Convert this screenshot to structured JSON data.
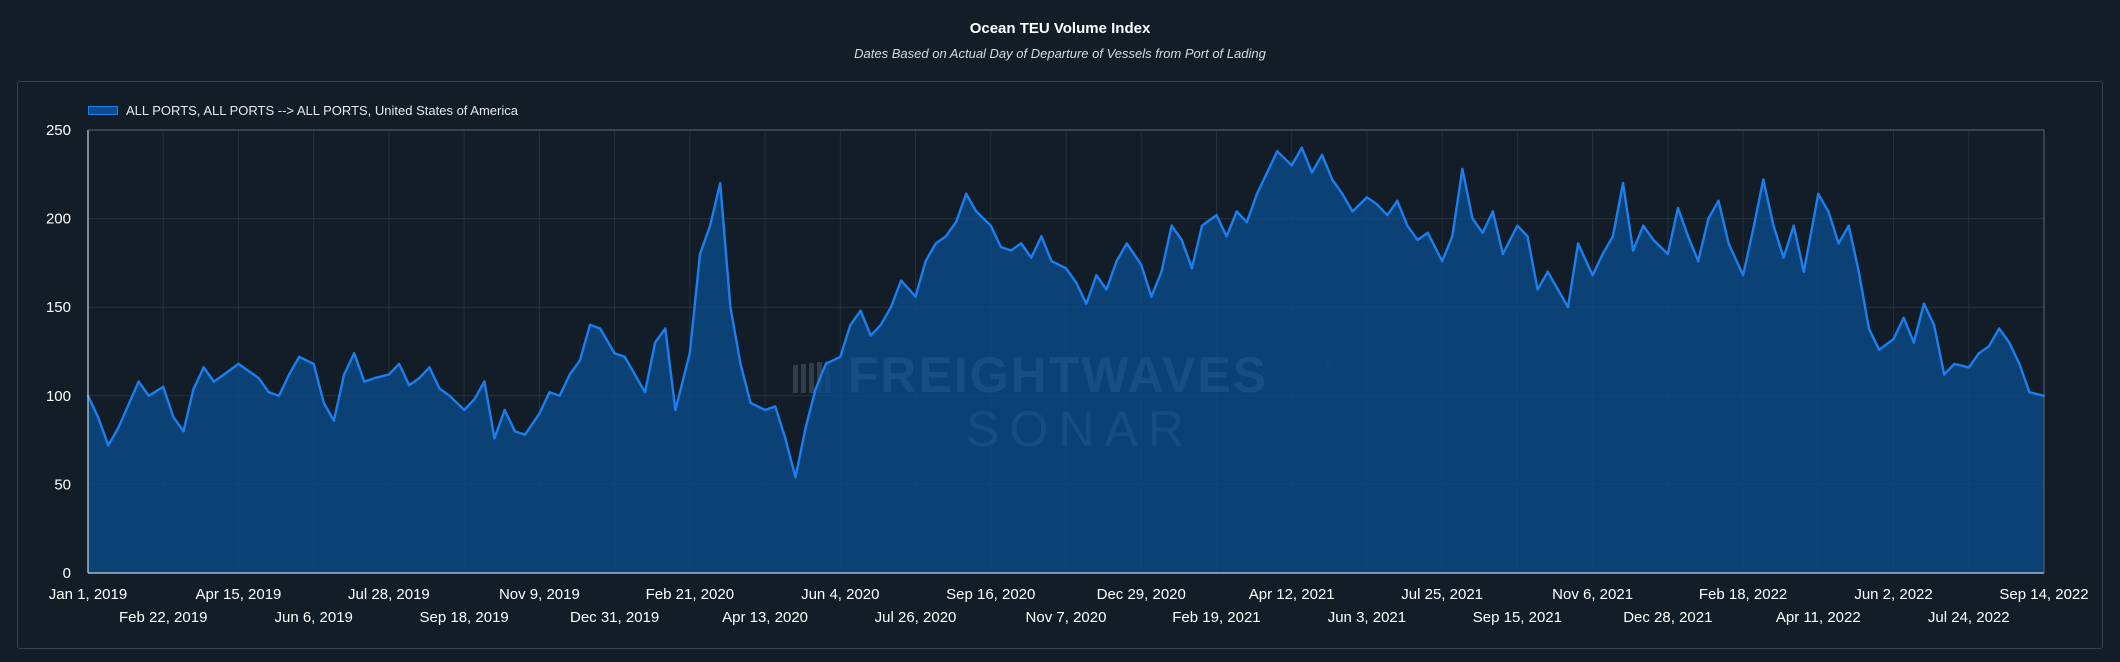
{
  "chart_data": {
    "type": "area",
    "title": "Ocean TEU Volume Index",
    "subtitle": "Dates Based on Actual Day of Departure of Vessels from Port of Lading",
    "xlabel": "",
    "ylabel": "",
    "ylim": [
      0,
      250
    ],
    "yticks": [
      "0",
      "50",
      "100",
      "150",
      "200",
      "250"
    ],
    "grid": true,
    "legend_position": "top-left",
    "x_tick_labels": [
      "Jan 1, 2019",
      "Feb 22, 2019",
      "Apr 15, 2019",
      "Jun 6, 2019",
      "Jul 28, 2019",
      "Sep 18, 2019",
      "Nov 9, 2019",
      "Dec 31, 2019",
      "Feb 21, 2020",
      "Apr 13, 2020",
      "Jun 4, 2020",
      "Jul 26, 2020",
      "Sep 16, 2020",
      "Nov 7, 2020",
      "Dec 29, 2020",
      "Feb 19, 2021",
      "Apr 12, 2021",
      "Jun 3, 2021",
      "Jul 25, 2021",
      "Sep 15, 2021",
      "Nov 6, 2021",
      "Dec 28, 2021",
      "Feb 18, 2022",
      "Apr 11, 2022",
      "Jun 2, 2022",
      "Jul 24, 2022",
      "Sep 14, 2022"
    ],
    "series": [
      {
        "name": "ALL PORTS, ALL PORTS --> ALL PORTS, United States of America",
        "color": "#1a7ff0",
        "fill": "#0a4c8c",
        "points": [
          [
            "Jan 1, 2019",
            100
          ],
          [
            "Jan 8, 2019",
            88
          ],
          [
            "Jan 15, 2019",
            72
          ],
          [
            "Jan 22, 2019",
            82
          ],
          [
            "Jan 29, 2019",
            95
          ],
          [
            "Feb 5, 2019",
            108
          ],
          [
            "Feb 12, 2019",
            100
          ],
          [
            "Feb 22, 2019",
            105
          ],
          [
            "Mar 1, 2019",
            88
          ],
          [
            "Mar 8, 2019",
            80
          ],
          [
            "Mar 15, 2019",
            104
          ],
          [
            "Mar 22, 2019",
            116
          ],
          [
            "Mar 29, 2019",
            108
          ],
          [
            "Apr 5, 2019",
            112
          ],
          [
            "Apr 15, 2019",
            118
          ],
          [
            "Apr 22, 2019",
            114
          ],
          [
            "Apr 29, 2019",
            110
          ],
          [
            "May 6, 2019",
            102
          ],
          [
            "May 13, 2019",
            100
          ],
          [
            "May 20, 2019",
            112
          ],
          [
            "May 27, 2019",
            122
          ],
          [
            "Jun 6, 2019",
            118
          ],
          [
            "Jun 13, 2019",
            96
          ],
          [
            "Jun 20, 2019",
            86
          ],
          [
            "Jun 27, 2019",
            112
          ],
          [
            "Jul 4, 2019",
            124
          ],
          [
            "Jul 11, 2019",
            108
          ],
          [
            "Jul 18, 2019",
            110
          ],
          [
            "Jul 28, 2019",
            112
          ],
          [
            "Aug 4, 2019",
            118
          ],
          [
            "Aug 11, 2019",
            106
          ],
          [
            "Aug 18, 2019",
            110
          ],
          [
            "Aug 25, 2019",
            116
          ],
          [
            "Sep 1, 2019",
            104
          ],
          [
            "Sep 8, 2019",
            100
          ],
          [
            "Sep 18, 2019",
            92
          ],
          [
            "Sep 25, 2019",
            98
          ],
          [
            "Oct 2, 2019",
            108
          ],
          [
            "Oct 9, 2019",
            76
          ],
          [
            "Oct 16, 2019",
            92
          ],
          [
            "Oct 23, 2019",
            80
          ],
          [
            "Oct 30, 2019",
            78
          ],
          [
            "Nov 9, 2019",
            90
          ],
          [
            "Nov 16, 2019",
            102
          ],
          [
            "Nov 23, 2019",
            100
          ],
          [
            "Nov 30, 2019",
            112
          ],
          [
            "Dec 7, 2019",
            120
          ],
          [
            "Dec 14, 2019",
            140
          ],
          [
            "Dec 21, 2019",
            138
          ],
          [
            "Dec 31, 2019",
            124
          ],
          [
            "Jan 7, 2020",
            122
          ],
          [
            "Jan 14, 2020",
            112
          ],
          [
            "Jan 21, 2020",
            102
          ],
          [
            "Jan 28, 2020",
            130
          ],
          [
            "Feb 4, 2020",
            138
          ],
          [
            "Feb 11, 2020",
            92
          ],
          [
            "Feb 21, 2020",
            124
          ],
          [
            "Feb 28, 2020",
            180
          ],
          [
            "Mar 6, 2020",
            196
          ],
          [
            "Mar 13, 2020",
            220
          ],
          [
            "Mar 20, 2020",
            150
          ],
          [
            "Mar 27, 2020",
            118
          ],
          [
            "Apr 3, 2020",
            96
          ],
          [
            "Apr 13, 2020",
            92
          ],
          [
            "Apr 20, 2020",
            94
          ],
          [
            "Apr 27, 2020",
            76
          ],
          [
            "May 4, 2020",
            54
          ],
          [
            "May 11, 2020",
            82
          ],
          [
            "May 18, 2020",
            104
          ],
          [
            "May 25, 2020",
            118
          ],
          [
            "Jun 4, 2020",
            122
          ],
          [
            "Jun 11, 2020",
            140
          ],
          [
            "Jun 18, 2020",
            148
          ],
          [
            "Jun 25, 2020",
            134
          ],
          [
            "Jul 2, 2020",
            140
          ],
          [
            "Jul 9, 2020",
            150
          ],
          [
            "Jul 16, 2020",
            165
          ],
          [
            "Jul 26, 2020",
            156
          ],
          [
            "Aug 2, 2020",
            176
          ],
          [
            "Aug 9, 2020",
            186
          ],
          [
            "Aug 16, 2020",
            190
          ],
          [
            "Aug 23, 2020",
            198
          ],
          [
            "Aug 30, 2020",
            214
          ],
          [
            "Sep 6, 2020",
            204
          ],
          [
            "Sep 16, 2020",
            196
          ],
          [
            "Sep 23, 2020",
            184
          ],
          [
            "Sep 30, 2020",
            182
          ],
          [
            "Oct 7, 2020",
            186
          ],
          [
            "Oct 14, 2020",
            178
          ],
          [
            "Oct 21, 2020",
            190
          ],
          [
            "Oct 28, 2020",
            176
          ],
          [
            "Nov 7, 2020",
            172
          ],
          [
            "Nov 14, 2020",
            164
          ],
          [
            "Nov 21, 2020",
            152
          ],
          [
            "Nov 28, 2020",
            168
          ],
          [
            "Dec 5, 2020",
            160
          ],
          [
            "Dec 12, 2020",
            176
          ],
          [
            "Dec 19, 2020",
            186
          ],
          [
            "Dec 29, 2020",
            174
          ],
          [
            "Jan 5, 2021",
            156
          ],
          [
            "Jan 12, 2021",
            170
          ],
          [
            "Jan 19, 2021",
            196
          ],
          [
            "Jan 26, 2021",
            188
          ],
          [
            "Feb 2, 2021",
            172
          ],
          [
            "Feb 9, 2021",
            196
          ],
          [
            "Feb 19, 2021",
            202
          ],
          [
            "Feb 26, 2021",
            190
          ],
          [
            "Mar 5, 2021",
            204
          ],
          [
            "Mar 12, 2021",
            198
          ],
          [
            "Mar 19, 2021",
            214
          ],
          [
            "Mar 26, 2021",
            226
          ],
          [
            "Apr 2, 2021",
            238
          ],
          [
            "Apr 12, 2021",
            230
          ],
          [
            "Apr 19, 2021",
            240
          ],
          [
            "Apr 26, 2021",
            226
          ],
          [
            "May 3, 2021",
            236
          ],
          [
            "May 10, 2021",
            222
          ],
          [
            "May 17, 2021",
            214
          ],
          [
            "May 24, 2021",
            204
          ],
          [
            "Jun 3, 2021",
            212
          ],
          [
            "Jun 10, 2021",
            208
          ],
          [
            "Jun 17, 2021",
            202
          ],
          [
            "Jun 24, 2021",
            210
          ],
          [
            "Jul 1, 2021",
            196
          ],
          [
            "Jul 8, 2021",
            188
          ],
          [
            "Jul 15, 2021",
            192
          ],
          [
            "Jul 25, 2021",
            176
          ],
          [
            "Aug 1, 2021",
            190
          ],
          [
            "Aug 8, 2021",
            228
          ],
          [
            "Aug 15, 2021",
            200
          ],
          [
            "Aug 22, 2021",
            192
          ],
          [
            "Aug 29, 2021",
            204
          ],
          [
            "Sep 5, 2021",
            180
          ],
          [
            "Sep 15, 2021",
            196
          ],
          [
            "Sep 22, 2021",
            190
          ],
          [
            "Sep 29, 2021",
            160
          ],
          [
            "Oct 6, 2021",
            170
          ],
          [
            "Oct 13, 2021",
            160
          ],
          [
            "Oct 20, 2021",
            150
          ],
          [
            "Oct 27, 2021",
            186
          ],
          [
            "Nov 6, 2021",
            168
          ],
          [
            "Nov 13, 2021",
            180
          ],
          [
            "Nov 20, 2021",
            190
          ],
          [
            "Nov 27, 2021",
            220
          ],
          [
            "Dec 4, 2021",
            182
          ],
          [
            "Dec 11, 2021",
            196
          ],
          [
            "Dec 18, 2021",
            188
          ],
          [
            "Dec 28, 2021",
            180
          ],
          [
            "Jan 4, 2022",
            206
          ],
          [
            "Jan 11, 2022",
            190
          ],
          [
            "Jan 18, 2022",
            176
          ],
          [
            "Jan 25, 2022",
            200
          ],
          [
            "Feb 1, 2022",
            210
          ],
          [
            "Feb 8, 2022",
            186
          ],
          [
            "Feb 18, 2022",
            168
          ],
          [
            "Feb 25, 2022",
            194
          ],
          [
            "Mar 4, 2022",
            222
          ],
          [
            "Mar 11, 2022",
            196
          ],
          [
            "Mar 18, 2022",
            178
          ],
          [
            "Mar 25, 2022",
            196
          ],
          [
            "Apr 1, 2022",
            170
          ],
          [
            "Apr 11, 2022",
            214
          ],
          [
            "Apr 18, 2022",
            204
          ],
          [
            "Apr 25, 2022",
            186
          ],
          [
            "May 2, 2022",
            196
          ],
          [
            "May 9, 2022",
            170
          ],
          [
            "May 16, 2022",
            138
          ],
          [
            "May 23, 2022",
            126
          ],
          [
            "Jun 2, 2022",
            132
          ],
          [
            "Jun 9, 2022",
            144
          ],
          [
            "Jun 16, 2022",
            130
          ],
          [
            "Jun 23, 2022",
            152
          ],
          [
            "Jun 30, 2022",
            140
          ],
          [
            "Jul 7, 2022",
            112
          ],
          [
            "Jul 14, 2022",
            118
          ],
          [
            "Jul 24, 2022",
            116
          ],
          [
            "Jul 31, 2022",
            124
          ],
          [
            "Aug 7, 2022",
            128
          ],
          [
            "Aug 14, 2022",
            138
          ],
          [
            "Aug 21, 2022",
            130
          ],
          [
            "Aug 28, 2022",
            118
          ],
          [
            "Sep 4, 2022",
            102
          ],
          [
            "Sep 14, 2022",
            100
          ]
        ]
      }
    ]
  },
  "watermark": {
    "brand_top": "FREIGHTWAVES",
    "brand_bottom": "SONAR",
    "registered_mark": "®"
  }
}
